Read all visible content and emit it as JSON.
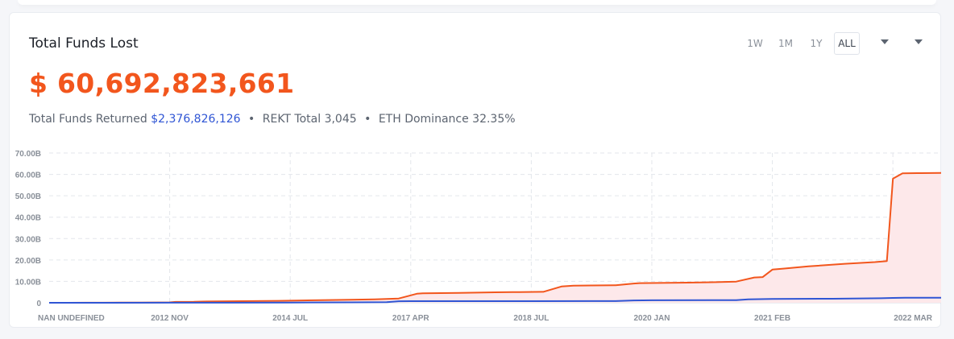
{
  "header": {
    "title": "Total Funds Lost",
    "total_value": "$ 60,692,823,661"
  },
  "stats": {
    "returned_label": "Total Funds Returned",
    "returned_value": "$2,376,826,126",
    "rekt_label": "REKT Total 3,045",
    "eth_label": "ETH Dominance 32.35%",
    "separator": "•"
  },
  "range_buttons": [
    "1W",
    "1M",
    "1Y",
    "ALL"
  ],
  "active_range": "ALL",
  "colors": {
    "accent": "#f2561d",
    "returned_line": "#2f55d4",
    "area_fill": "#fde8ea",
    "grid": "#e3e6eb"
  },
  "chart_data": {
    "type": "area",
    "ylim": [
      0,
      70
    ],
    "y_ticks": [
      0,
      10,
      20,
      30,
      40,
      50,
      60,
      70
    ],
    "y_tick_labels": [
      "0",
      "10.00B",
      "20.00B",
      "30.00B",
      "40.00B",
      "50.00B",
      "60.00B",
      "70.00B"
    ],
    "x_tick_labels": [
      "NAN UNDEFINED",
      "2012 NOV",
      "2014 JUL",
      "2017 APR",
      "2018 JUL",
      "2020 JAN",
      "2021 FEB",
      "2022 MAR"
    ],
    "grid": true,
    "legend": "none",
    "series": [
      {
        "x": [
          0,
          0.15,
          0.3,
          0.45,
          0.6,
          0.75,
          0.9,
          1.0,
          1.05,
          1.2,
          1.3,
          1.6,
          1.9,
          2.1,
          2.5,
          2.7,
          2.9,
          3.05,
          3.1,
          3.4,
          3.7,
          3.9,
          4.1,
          4.25,
          4.35,
          4.5,
          4.7,
          4.85,
          4.9,
          5.3,
          5.5,
          5.7,
          5.85,
          5.92,
          6.0,
          6.1,
          6.3,
          6.6,
          6.85,
          6.95,
          7.0,
          7.08,
          7.2,
          7.4
        ],
        "y": [
          0,
          0.01,
          0.03,
          0.05,
          0.08,
          0.1,
          0.15,
          0.2,
          0.4,
          0.45,
          0.6,
          0.75,
          0.9,
          1.1,
          1.4,
          1.6,
          2.0,
          4.2,
          4.4,
          4.6,
          4.9,
          5.0,
          5.1,
          7.6,
          8.0,
          8.1,
          8.2,
          9.0,
          9.2,
          9.4,
          9.6,
          9.9,
          11.8,
          12.0,
          15.5,
          16.0,
          17.0,
          18.2,
          19.0,
          19.5,
          58.0,
          60.5,
          60.6,
          60.69
        ]
      },
      {
        "x": [
          0,
          0.5,
          1.0,
          1.5,
          2.0,
          2.5,
          2.8,
          2.9,
          3.0,
          3.5,
          4.0,
          4.5,
          4.7,
          4.85,
          5.0,
          5.5,
          5.7,
          5.8,
          6.0,
          6.5,
          6.9,
          7.0,
          7.1,
          7.4
        ],
        "y": [
          0,
          0.0,
          0.02,
          0.05,
          0.1,
          0.2,
          0.3,
          0.7,
          0.75,
          0.75,
          0.75,
          0.78,
          0.8,
          1.1,
          1.15,
          1.2,
          1.25,
          1.6,
          1.8,
          1.9,
          2.1,
          2.25,
          2.35,
          2.38
        ]
      }
    ]
  }
}
